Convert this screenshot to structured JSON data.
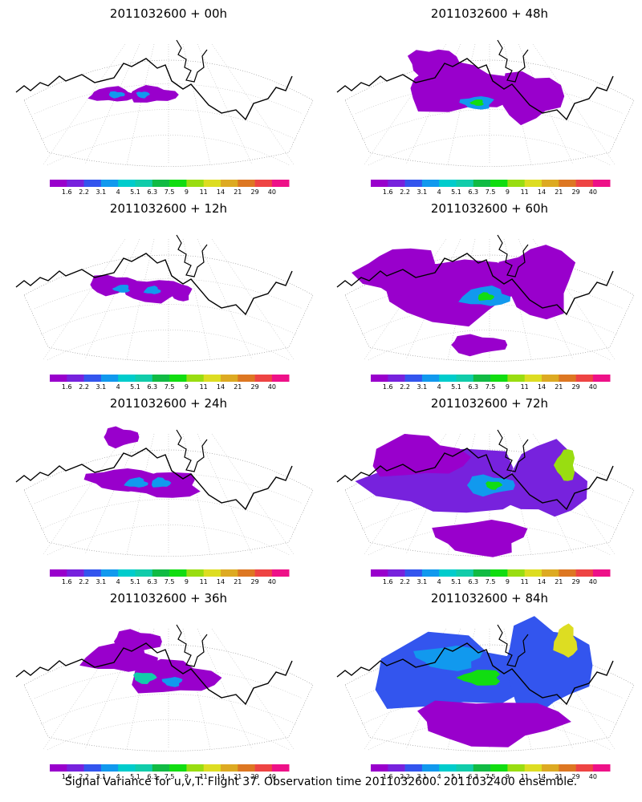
{
  "figure": {
    "caption": "Signal Variance for u,v,T. Flight 37. Observation time 2011032600. 2011032400 ensemble."
  },
  "colorbar": {
    "labels": [
      "1.6",
      "2.2",
      "3.1",
      "4",
      "5.1",
      "6.3",
      "7.5",
      "9",
      "11",
      "14",
      "21",
      "29",
      "40"
    ],
    "colors": [
      "#9900cc",
      "#7722dd",
      "#3355ee",
      "#1199ee",
      "#00cccc",
      "#11ccaa",
      "#11bb44",
      "#11dd11",
      "#99dd11",
      "#dddd22",
      "#ddaa22",
      "#dd7722",
      "#ee4444",
      "#ee1188"
    ]
  },
  "panels": [
    {
      "title": "2011032600 + 00h",
      "lead_hours": 0
    },
    {
      "title": "2011032600 + 48h",
      "lead_hours": 48
    },
    {
      "title": "2011032600 + 12h",
      "lead_hours": 12
    },
    {
      "title": "2011032600 + 60h",
      "lead_hours": 60
    },
    {
      "title": "2011032600 + 24h",
      "lead_hours": 24
    },
    {
      "title": "2011032600 + 72h",
      "lead_hours": 72
    },
    {
      "title": "2011032600 + 36h",
      "lead_hours": 36
    },
    {
      "title": "2011032600 + 84h",
      "lead_hours": 84
    }
  ]
}
